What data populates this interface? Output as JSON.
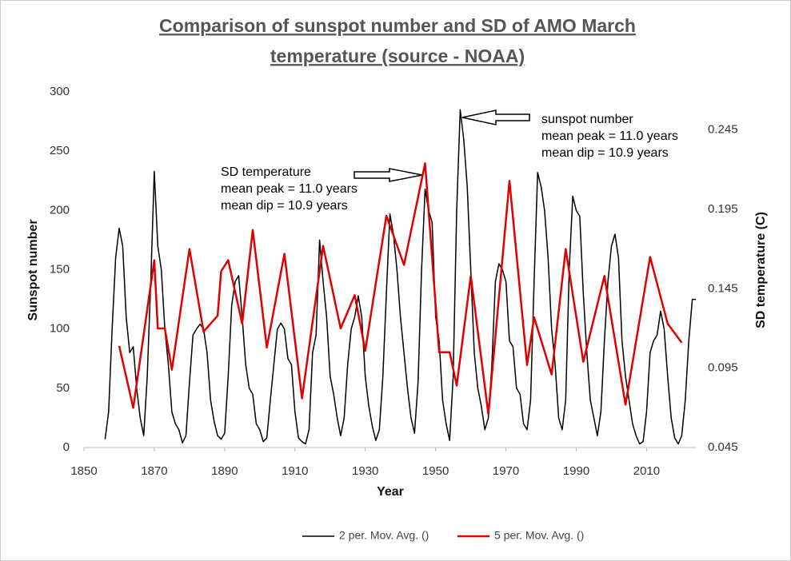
{
  "chart_data": {
    "type": "line",
    "title": [
      "Comparison of sunspot number and SD of AMO March",
      "temperature (source  - NOAA)"
    ],
    "xlabel": "Year",
    "ylabel": "Sunspot number",
    "y2label": "SD temperature (C)",
    "xlim": [
      1850,
      2024
    ],
    "xticks": [
      1850,
      1870,
      1890,
      1910,
      1930,
      1950,
      1970,
      1990,
      2010
    ],
    "ylim": [
      0,
      300
    ],
    "yticks": [
      0,
      50,
      100,
      150,
      200,
      250,
      300
    ],
    "y2lim": [
      0.045,
      0.269
    ],
    "y2ticks": [
      0.045,
      0.095,
      0.145,
      0.195,
      0.245
    ],
    "grid": false,
    "legend": "bottom",
    "annotations": [
      {
        "lines": [
          "SD temperature",
          "mean peak = 11.0 years",
          "mean dip = 10.9 years"
        ]
      },
      {
        "lines": [
          "sunspot number",
          "mean peak = 11.0 years",
          "mean dip = 10.9 years"
        ]
      }
    ],
    "series": [
      {
        "name": "2 per. Mov. Avg. ()",
        "color": "#000000",
        "width": 1.5,
        "x": [
          1856,
          1857,
          1858,
          1859,
          1860,
          1861,
          1862,
          1863,
          1864,
          1865,
          1866,
          1867,
          1868,
          1869,
          1870,
          1871,
          1872,
          1873,
          1874,
          1875,
          1876,
          1877,
          1878,
          1879,
          1880,
          1881,
          1882,
          1883,
          1884,
          1885,
          1886,
          1887,
          1888,
          1889,
          1890,
          1891,
          1892,
          1893,
          1894,
          1895,
          1896,
          1897,
          1898,
          1899,
          1900,
          1901,
          1902,
          1903,
          1904,
          1905,
          1906,
          1907,
          1908,
          1909,
          1910,
          1911,
          1912,
          1913,
          1914,
          1915,
          1916,
          1917,
          1918,
          1919,
          1920,
          1921,
          1922,
          1923,
          1924,
          1925,
          1926,
          1927,
          1928,
          1929,
          1930,
          1931,
          1932,
          1933,
          1934,
          1935,
          1936,
          1937,
          1938,
          1939,
          1940,
          1941,
          1942,
          1943,
          1944,
          1945,
          1946,
          1947,
          1948,
          1949,
          1950,
          1951,
          1952,
          1953,
          1954,
          1955,
          1956,
          1957,
          1958,
          1959,
          1960,
          1961,
          1962,
          1963,
          1964,
          1965,
          1966,
          1967,
          1968,
          1969,
          1970,
          1971,
          1972,
          1973,
          1974,
          1975,
          1976,
          1977,
          1978,
          1979,
          1980,
          1981,
          1982,
          1983,
          1984,
          1985,
          1986,
          1987,
          1988,
          1989,
          1990,
          1991,
          1992,
          1993,
          1994,
          1995,
          1996,
          1997,
          1998,
          1999,
          2000,
          2001,
          2002,
          2003,
          2004,
          2005,
          2006,
          2007,
          2008,
          2009,
          2010,
          2011,
          2012,
          2013,
          2014,
          2015,
          2016,
          2017,
          2018,
          2019,
          2020,
          2021,
          2022,
          2023,
          2024
        ],
        "values": [
          7,
          30,
          100,
          160,
          185,
          170,
          110,
          80,
          85,
          50,
          25,
          10,
          60,
          140,
          233,
          170,
          150,
          100,
          70,
          30,
          20,
          15,
          4,
          10,
          55,
          95,
          100,
          104,
          100,
          80,
          40,
          22,
          10,
          7,
          12,
          60,
          120,
          140,
          145,
          110,
          70,
          50,
          45,
          20,
          15,
          5,
          8,
          40,
          70,
          100,
          105,
          100,
          75,
          70,
          30,
          8,
          5,
          3,
          15,
          80,
          95,
          175,
          140,
          110,
          60,
          45,
          25,
          10,
          25,
          70,
          100,
          110,
          128,
          110,
          60,
          35,
          18,
          6,
          15,
          60,
          130,
          197,
          180,
          150,
          110,
          80,
          50,
          25,
          12,
          55,
          150,
          218,
          200,
          190,
          110,
          90,
          40,
          20,
          6,
          60,
          200,
          285,
          260,
          220,
          150,
          80,
          50,
          35,
          15,
          25,
          70,
          140,
          155,
          150,
          140,
          90,
          85,
          50,
          45,
          20,
          15,
          40,
          140,
          232,
          220,
          200,
          160,
          100,
          70,
          25,
          15,
          40,
          150,
          212,
          200,
          195,
          130,
          80,
          40,
          25,
          10,
          30,
          90,
          140,
          170,
          180,
          160,
          90,
          60,
          40,
          20,
          10,
          3,
          5,
          30,
          80,
          90,
          95,
          115,
          100,
          60,
          25,
          8,
          3,
          10,
          40,
          90,
          125,
          125
        ]
      },
      {
        "name": "5 per. Mov. Avg. ()",
        "color": "#e00000",
        "width": 2.5,
        "axis": "y2",
        "x": [
          1860,
          1864,
          1870,
          1871,
          1873,
          1875,
          1880,
          1884,
          1888,
          1889,
          1891,
          1895,
          1898,
          1902,
          1907,
          1912,
          1918,
          1923,
          1927,
          1930,
          1936,
          1941,
          1947,
          1951,
          1954,
          1956,
          1960,
          1965,
          1971,
          1976,
          1978,
          1983,
          1987,
          1992,
          1998,
          2004,
          2011,
          2016,
          2020
        ],
        "values": [
          0.109,
          0.07,
          0.163,
          0.12,
          0.12,
          0.094,
          0.17,
          0.118,
          0.128,
          0.156,
          0.163,
          0.123,
          0.182,
          0.108,
          0.167,
          0.076,
          0.172,
          0.12,
          0.141,
          0.106,
          0.191,
          0.16,
          0.224,
          0.105,
          0.105,
          0.084,
          0.153,
          0.066,
          0.213,
          0.097,
          0.127,
          0.091,
          0.17,
          0.099,
          0.153,
          0.072,
          0.165,
          0.123,
          0.111
        ]
      }
    ]
  }
}
